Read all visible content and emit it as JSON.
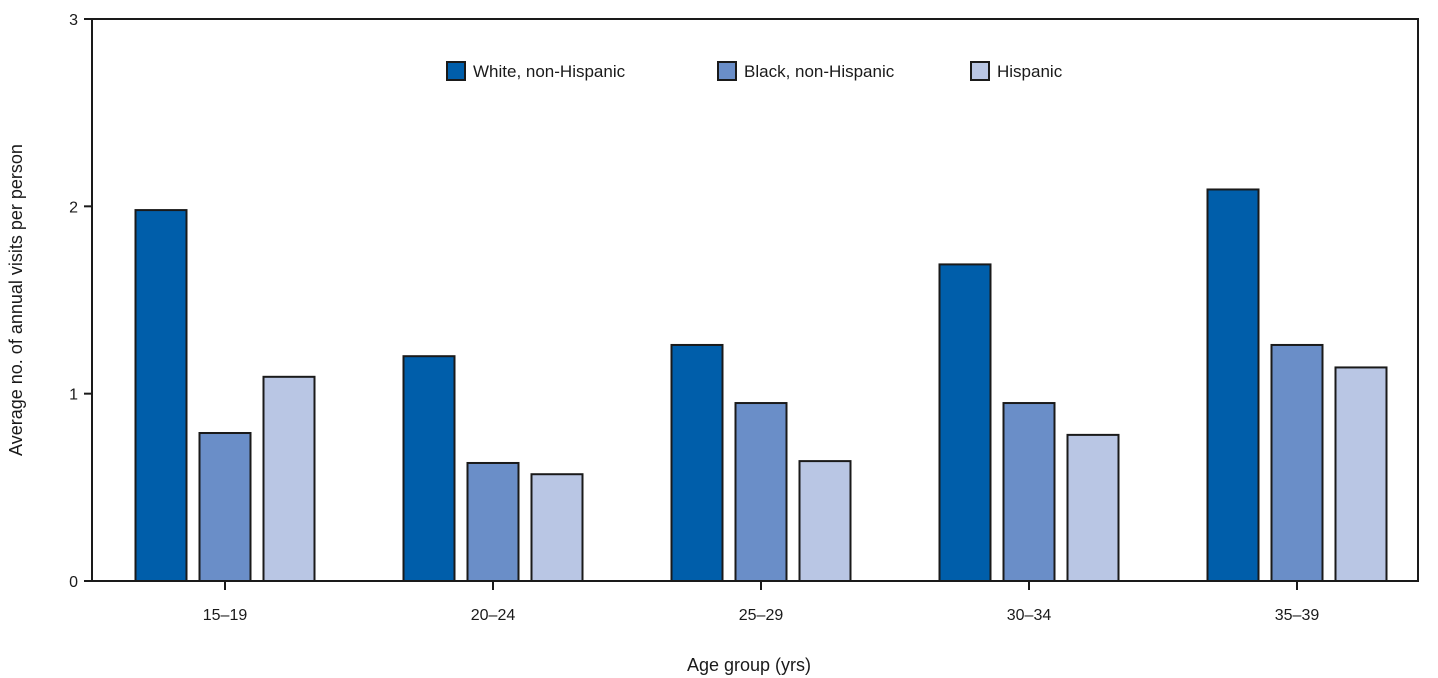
{
  "chart_data": {
    "type": "bar",
    "title": "",
    "xlabel": "Age group (yrs)",
    "ylabel": "Average no. of annual visits per person",
    "categories": [
      "15–19",
      "20–24",
      "25–29",
      "30–34",
      "35–39"
    ],
    "ylim": [
      0,
      3
    ],
    "yticks": [
      "0",
      "1",
      "2",
      "3"
    ],
    "grid": false,
    "legend_position": "top-center",
    "series": [
      {
        "name": "White, non-Hispanic",
        "color": "#005eaa",
        "values": [
          1.98,
          1.2,
          1.26,
          1.69,
          2.09
        ]
      },
      {
        "name": "Black, non-Hispanic",
        "color": "#6a8ec8",
        "values": [
          0.79,
          0.63,
          0.95,
          0.95,
          1.26
        ]
      },
      {
        "name": "Hispanic",
        "color": "#b9c6e4",
        "values": [
          1.09,
          0.57,
          0.64,
          0.78,
          1.14
        ]
      }
    ]
  }
}
